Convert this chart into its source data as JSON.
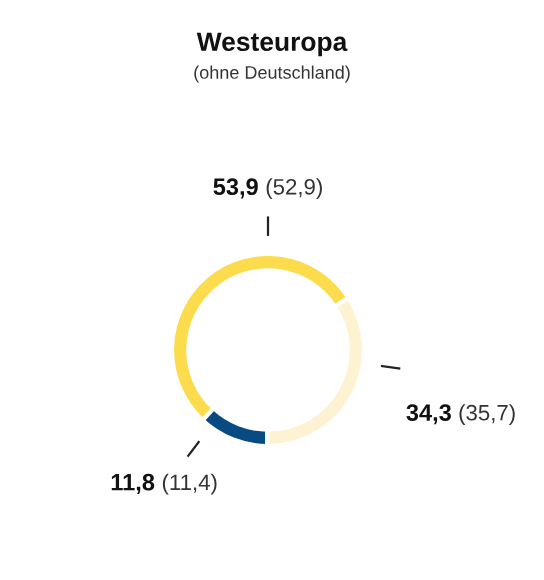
{
  "chart_data": {
    "type": "donut",
    "title": "Westeuropa",
    "subtitle": "(ohne Deutschland)",
    "categories": [
      null,
      null,
      null
    ],
    "values": [
      53.9,
      11.8,
      34.3
    ],
    "colors": [
      "#fcdc4d",
      "#084b83",
      "#fdf3d3"
    ],
    "value_labels": [
      "53,9 (52,9)",
      "11,8 (11,4)",
      "34,3 (35,7)"
    ],
    "legend": false
  }
}
